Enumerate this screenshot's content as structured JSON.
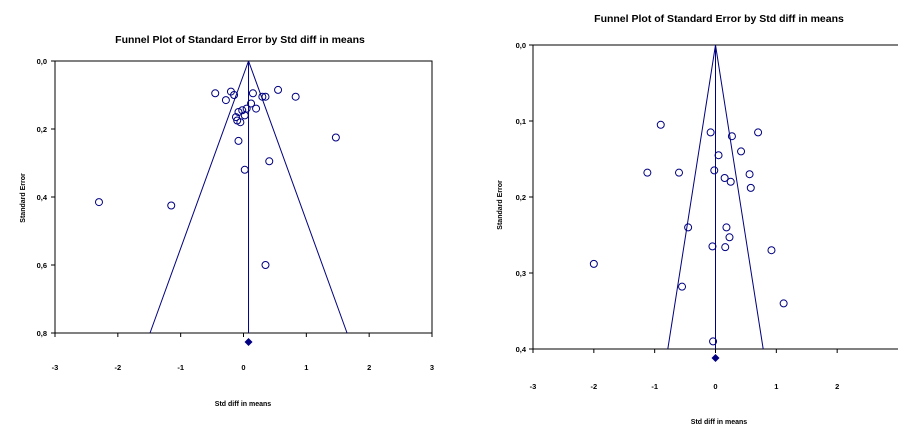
{
  "chart_data": [
    {
      "type": "scatter",
      "title": "Funnel Plot of Standard Error by Std diff in means",
      "xlabel": "Std diff in means",
      "ylabel": "Standard Error",
      "xlim": [
        -3,
        3
      ],
      "ylim": [
        0,
        0.8
      ],
      "y_inverted": true,
      "x_ticks": [
        "-3",
        "-2",
        "-1",
        "0",
        "1",
        "2",
        "3"
      ],
      "y_ticks": [
        "0,0",
        "0,2",
        "0,4",
        "0,6",
        "0,8"
      ],
      "summary_effect": 0.08,
      "grid": false,
      "colors": {
        "frame": "#000000",
        "marks": "#000080"
      },
      "points": [
        {
          "x": -0.45,
          "y": 0.095
        },
        {
          "x": -0.28,
          "y": 0.115
        },
        {
          "x": -0.2,
          "y": 0.09
        },
        {
          "x": -0.15,
          "y": 0.1
        },
        {
          "x": -0.08,
          "y": 0.15
        },
        {
          "x": -0.12,
          "y": 0.165
        },
        {
          "x": -0.1,
          "y": 0.175
        },
        {
          "x": -0.05,
          "y": 0.18
        },
        {
          "x": -0.02,
          "y": 0.145
        },
        {
          "x": 0.02,
          "y": 0.16
        },
        {
          "x": 0.05,
          "y": 0.14
        },
        {
          "x": 0.12,
          "y": 0.125
        },
        {
          "x": 0.15,
          "y": 0.095
        },
        {
          "x": 0.2,
          "y": 0.14
        },
        {
          "x": 0.3,
          "y": 0.105
        },
        {
          "x": 0.35,
          "y": 0.105
        },
        {
          "x": 0.55,
          "y": 0.085
        },
        {
          "x": 0.83,
          "y": 0.105
        },
        {
          "x": 1.47,
          "y": 0.225
        },
        {
          "x": 0.41,
          "y": 0.295
        },
        {
          "x": -0.08,
          "y": 0.235
        },
        {
          "x": 0.02,
          "y": 0.32
        },
        {
          "x": -2.3,
          "y": 0.415
        },
        {
          "x": -1.15,
          "y": 0.425
        },
        {
          "x": 0.35,
          "y": 0.6
        }
      ]
    },
    {
      "type": "scatter",
      "title": "Funnel Plot of Standard Error by Std diff in means",
      "xlabel": "Std diff in means",
      "ylabel": "Standard Error",
      "xlim": [
        -3,
        3
      ],
      "ylim": [
        0,
        0.4
      ],
      "y_inverted": true,
      "x_ticks": [
        "-3",
        "-2",
        "-1",
        "0",
        "1",
        "2"
      ],
      "y_ticks": [
        "0,0",
        "0,1",
        "0,2",
        "0,3",
        "0,4"
      ],
      "summary_effect": 0.0,
      "grid": false,
      "colors": {
        "frame": "#000000",
        "marks": "#000080"
      },
      "points": [
        {
          "x": -0.9,
          "y": 0.105
        },
        {
          "x": -0.08,
          "y": 0.115
        },
        {
          "x": 0.27,
          "y": 0.12
        },
        {
          "x": 0.7,
          "y": 0.115
        },
        {
          "x": 0.05,
          "y": 0.145
        },
        {
          "x": 0.42,
          "y": 0.14
        },
        {
          "x": -1.12,
          "y": 0.168
        },
        {
          "x": -0.6,
          "y": 0.168
        },
        {
          "x": -0.02,
          "y": 0.165
        },
        {
          "x": 0.15,
          "y": 0.175
        },
        {
          "x": 0.25,
          "y": 0.18
        },
        {
          "x": 0.56,
          "y": 0.17
        },
        {
          "x": 0.58,
          "y": 0.188
        },
        {
          "x": -0.45,
          "y": 0.24
        },
        {
          "x": 0.18,
          "y": 0.24
        },
        {
          "x": 0.23,
          "y": 0.253
        },
        {
          "x": -0.05,
          "y": 0.265
        },
        {
          "x": 0.16,
          "y": 0.266
        },
        {
          "x": 0.92,
          "y": 0.27
        },
        {
          "x": -2.0,
          "y": 0.288
        },
        {
          "x": -0.55,
          "y": 0.318
        },
        {
          "x": 1.12,
          "y": 0.34
        },
        {
          "x": -0.04,
          "y": 0.39
        }
      ]
    }
  ]
}
